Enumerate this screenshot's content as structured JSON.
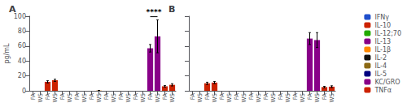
{
  "chart_data": [
    {
      "type": "bar",
      "title": "A",
      "ylabel": "pg/mL",
      "categories": [
        "FA",
        "WS",
        "FA",
        "WS",
        "FA",
        "WS",
        "FA",
        "WS",
        "FA",
        "WS",
        "FA",
        "WS",
        "FA",
        "WS",
        "FA",
        "WS",
        "FA",
        "WS",
        "FA",
        "WS"
      ],
      "series": [
        {
          "name": "IFNγ",
          "color": "#1f4fcc",
          "values": [
            0,
            0,
            null,
            null,
            null,
            null,
            null,
            null,
            null,
            null,
            null,
            null,
            null,
            null,
            null,
            null,
            null,
            null,
            null,
            null
          ],
          "errors": [
            0,
            0,
            null,
            null,
            null,
            null,
            null,
            null,
            null,
            null,
            null,
            null,
            null,
            null,
            null,
            null,
            null,
            null,
            null,
            null
          ]
        },
        {
          "name": "IL-10",
          "color": "#cc2200",
          "values": [
            null,
            null,
            12,
            14,
            null,
            null,
            null,
            null,
            null,
            null,
            null,
            null,
            null,
            null,
            null,
            null,
            null,
            null,
            null,
            null
          ],
          "errors": [
            null,
            null,
            1.5,
            1.5,
            null,
            null,
            null,
            null,
            null,
            null,
            null,
            null,
            null,
            null,
            null,
            null,
            null,
            null,
            null,
            null
          ]
        },
        {
          "name": "IL-12;70",
          "color": "#22aa00",
          "values": [
            null,
            null,
            null,
            null,
            0,
            0,
            null,
            null,
            null,
            null,
            null,
            null,
            null,
            null,
            null,
            null,
            null,
            null,
            null,
            null
          ],
          "errors": [
            null,
            null,
            null,
            null,
            0,
            0,
            null,
            null,
            null,
            null,
            null,
            null,
            null,
            null,
            null,
            null,
            null,
            null,
            null,
            null
          ]
        },
        {
          "name": "IL-13",
          "color": "#880088",
          "values": [
            null,
            null,
            null,
            null,
            null,
            null,
            0,
            0,
            null,
            null,
            null,
            null,
            null,
            null,
            null,
            null,
            null,
            null,
            null,
            null
          ],
          "errors": [
            null,
            null,
            null,
            null,
            null,
            null,
            0,
            0,
            null,
            null,
            null,
            null,
            null,
            null,
            null,
            null,
            null,
            null,
            null,
            null
          ]
        },
        {
          "name": "IL-1β",
          "color": "#ff8800",
          "values": [
            null,
            null,
            null,
            null,
            null,
            null,
            null,
            null,
            0,
            0.3,
            null,
            null,
            null,
            null,
            null,
            null,
            null,
            null,
            null,
            null
          ],
          "errors": [
            null,
            null,
            null,
            null,
            null,
            null,
            null,
            null,
            0,
            0,
            null,
            null,
            null,
            null,
            null,
            null,
            null,
            null,
            null,
            null
          ]
        },
        {
          "name": "IL-2",
          "color": "#111111",
          "values": [
            null,
            null,
            null,
            null,
            null,
            null,
            null,
            null,
            null,
            null,
            0,
            0,
            null,
            null,
            null,
            null,
            null,
            null,
            null,
            null
          ],
          "errors": [
            null,
            null,
            null,
            null,
            null,
            null,
            null,
            null,
            null,
            null,
            0,
            0,
            null,
            null,
            null,
            null,
            null,
            null,
            null,
            null
          ]
        },
        {
          "name": "IL-4",
          "color": "#8b6914",
          "values": [
            null,
            null,
            null,
            null,
            null,
            null,
            null,
            null,
            null,
            null,
            null,
            null,
            0,
            0,
            null,
            null,
            null,
            null,
            null,
            null
          ],
          "errors": [
            null,
            null,
            null,
            null,
            null,
            null,
            null,
            null,
            null,
            null,
            null,
            null,
            0,
            0,
            null,
            null,
            null,
            null,
            null,
            null
          ]
        },
        {
          "name": "IL-5",
          "color": "#000080",
          "values": [
            null,
            null,
            null,
            null,
            null,
            null,
            null,
            null,
            null,
            null,
            null,
            null,
            null,
            null,
            0,
            0,
            null,
            null,
            null,
            null
          ],
          "errors": [
            null,
            null,
            null,
            null,
            null,
            null,
            null,
            null,
            null,
            null,
            null,
            null,
            null,
            null,
            0,
            0,
            null,
            null,
            null,
            null
          ]
        },
        {
          "name": "KC/GRO",
          "color": "#880088",
          "values": [
            null,
            null,
            null,
            null,
            null,
            null,
            null,
            null,
            null,
            null,
            null,
            null,
            null,
            null,
            null,
            null,
            57,
            73,
            null,
            null
          ],
          "errors": [
            null,
            null,
            null,
            null,
            null,
            null,
            null,
            null,
            null,
            null,
            null,
            null,
            null,
            null,
            null,
            null,
            5,
            22,
            null,
            null
          ]
        },
        {
          "name": "TNFα",
          "color": "#cc2200",
          "values": [
            null,
            null,
            null,
            null,
            null,
            null,
            null,
            null,
            null,
            null,
            null,
            null,
            null,
            null,
            null,
            null,
            null,
            null,
            6,
            8
          ],
          "errors": [
            null,
            null,
            null,
            null,
            null,
            null,
            null,
            null,
            null,
            null,
            null,
            null,
            null,
            null,
            null,
            null,
            null,
            null,
            1,
            1.5
          ]
        }
      ],
      "annotations": [
        {
          "text": "****",
          "series": "KC/GRO"
        }
      ],
      "ylim": [
        0,
        100
      ],
      "yticks": [
        0,
        20,
        40,
        60,
        80,
        100
      ],
      "grid": false,
      "legend": "right"
    },
    {
      "type": "bar",
      "title": "B",
      "categories": [
        "FA",
        "WS",
        "FA",
        "WS",
        "FA",
        "WS",
        "FA",
        "WS",
        "FA",
        "WS",
        "FA",
        "WS",
        "FA",
        "WS",
        "FA",
        "WS",
        "FA",
        "WS",
        "FA",
        "WS"
      ],
      "series": [
        {
          "name": "IFNγ",
          "color": "#1f4fcc",
          "values": [
            0,
            0,
            null,
            null,
            null,
            null,
            null,
            null,
            null,
            null,
            null,
            null,
            null,
            null,
            null,
            null,
            null,
            null,
            null,
            null
          ],
          "errors": [
            0,
            0,
            null,
            null,
            null,
            null,
            null,
            null,
            null,
            null,
            null,
            null,
            null,
            null,
            null,
            null,
            null,
            null,
            null,
            null
          ]
        },
        {
          "name": "IL-10",
          "color": "#cc2200",
          "values": [
            null,
            null,
            10,
            11,
            null,
            null,
            null,
            null,
            null,
            null,
            null,
            null,
            null,
            null,
            null,
            null,
            null,
            null,
            null,
            null
          ],
          "errors": [
            null,
            null,
            1.5,
            1.5,
            null,
            null,
            null,
            null,
            null,
            null,
            null,
            null,
            null,
            null,
            null,
            null,
            null,
            null,
            null,
            null
          ]
        },
        {
          "name": "IL-12;70",
          "color": "#22aa00",
          "values": [
            null,
            null,
            null,
            null,
            0,
            0,
            null,
            null,
            null,
            null,
            null,
            null,
            null,
            null,
            null,
            null,
            null,
            null,
            null,
            null
          ],
          "errors": [
            null,
            null,
            null,
            null,
            0,
            0,
            null,
            null,
            null,
            null,
            null,
            null,
            null,
            null,
            null,
            null,
            null,
            null,
            null,
            null
          ]
        },
        {
          "name": "IL-13",
          "color": "#880088",
          "values": [
            null,
            null,
            null,
            null,
            null,
            null,
            0,
            0,
            null,
            null,
            null,
            null,
            null,
            null,
            null,
            null,
            null,
            null,
            null,
            null
          ],
          "errors": [
            null,
            null,
            null,
            null,
            null,
            null,
            0,
            0,
            null,
            null,
            null,
            null,
            null,
            null,
            null,
            null,
            null,
            null,
            null,
            null
          ]
        },
        {
          "name": "IL-1β",
          "color": "#ff8800",
          "values": [
            null,
            null,
            null,
            null,
            null,
            null,
            null,
            null,
            0,
            0,
            null,
            null,
            null,
            null,
            null,
            null,
            null,
            null,
            null,
            null
          ],
          "errors": [
            null,
            null,
            null,
            null,
            null,
            null,
            null,
            null,
            0,
            0,
            null,
            null,
            null,
            null,
            null,
            null,
            null,
            null,
            null,
            null
          ]
        },
        {
          "name": "IL-2",
          "color": "#111111",
          "values": [
            null,
            null,
            null,
            null,
            null,
            null,
            null,
            null,
            null,
            null,
            0,
            0,
            null,
            null,
            null,
            null,
            null,
            null,
            null,
            null
          ],
          "errors": [
            null,
            null,
            null,
            null,
            null,
            null,
            null,
            null,
            null,
            null,
            0,
            0,
            null,
            null,
            null,
            null,
            null,
            null,
            null,
            null
          ]
        },
        {
          "name": "IL-4",
          "color": "#8b6914",
          "values": [
            null,
            null,
            null,
            null,
            null,
            null,
            null,
            null,
            null,
            null,
            null,
            null,
            0,
            0,
            null,
            null,
            null,
            null,
            null,
            null
          ],
          "errors": [
            null,
            null,
            null,
            null,
            null,
            null,
            null,
            null,
            null,
            null,
            null,
            null,
            0,
            0,
            null,
            null,
            null,
            null,
            null,
            null
          ]
        },
        {
          "name": "IL-5",
          "color": "#000080",
          "values": [
            null,
            null,
            null,
            null,
            null,
            null,
            null,
            null,
            null,
            null,
            null,
            null,
            null,
            null,
            0,
            0,
            null,
            null,
            null,
            null
          ],
          "errors": [
            null,
            null,
            null,
            null,
            null,
            null,
            null,
            null,
            null,
            null,
            null,
            null,
            null,
            null,
            0,
            0,
            null,
            null,
            null,
            null
          ]
        },
        {
          "name": "KC/GRO",
          "color": "#880088",
          "values": [
            null,
            null,
            null,
            null,
            null,
            null,
            null,
            null,
            null,
            null,
            null,
            null,
            null,
            null,
            null,
            null,
            70,
            68,
            null,
            null
          ],
          "errors": [
            null,
            null,
            null,
            null,
            null,
            null,
            null,
            null,
            null,
            null,
            null,
            null,
            null,
            null,
            null,
            null,
            8,
            10,
            null,
            null
          ]
        },
        {
          "name": "TNFα",
          "color": "#cc2200",
          "values": [
            null,
            null,
            null,
            null,
            null,
            null,
            null,
            null,
            null,
            null,
            null,
            null,
            null,
            null,
            null,
            null,
            null,
            null,
            5,
            5.5
          ],
          "errors": [
            null,
            null,
            null,
            null,
            null,
            null,
            null,
            null,
            null,
            null,
            null,
            null,
            null,
            null,
            null,
            null,
            null,
            null,
            1,
            1.2
          ]
        }
      ],
      "ylim": [
        0,
        100
      ],
      "yticks": [
        0,
        20,
        40,
        60,
        80,
        100
      ],
      "grid": false,
      "legend": "right",
      "tick_labels": "x"
    }
  ]
}
